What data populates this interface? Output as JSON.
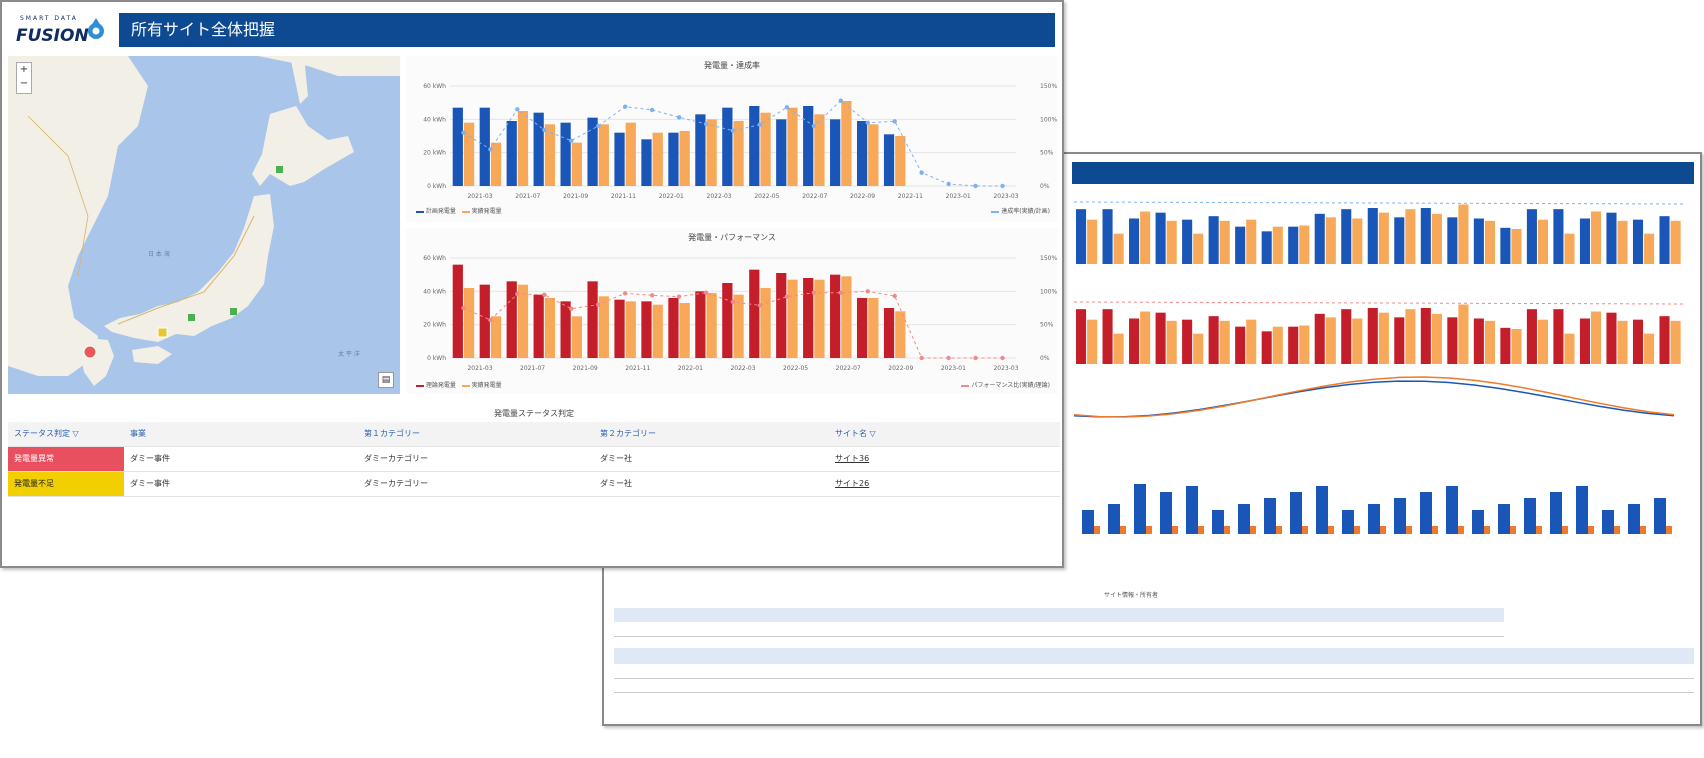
{
  "app": {
    "logo_text": "FUSION",
    "logo_small": "SMART DATA",
    "page_title": "所有サイト全体把握"
  },
  "map": {
    "zoom_in": "+",
    "zoom_out": "−",
    "layer_button": "▤",
    "colors": {
      "sea": "#a9c5ea",
      "land": "#f2efe6",
      "marker_red": "#e85a5a",
      "marker_yellow": "#e8c72c",
      "marker_green": "#4caf50"
    }
  },
  "charts": {
    "top": {
      "title": "発電量・達成率",
      "y_left_ticks": [
        "60 kWh",
        "40 kWh",
        "20 kWh",
        "0 kWh"
      ],
      "y_right_ticks": [
        "150%",
        "100%",
        "50%",
        "0%"
      ],
      "x_ticks": [
        "2021-03",
        "2021-07",
        "2021-09",
        "2021-11",
        "2022-01",
        "2022-03",
        "2022-05",
        "2022-07",
        "2022-09",
        "2022-11",
        "2023-01",
        "2023-03"
      ],
      "legend_a": "計画発電量",
      "legend_b": "実績発電量",
      "legend_c": "達成率(実績/計画)"
    },
    "bottom": {
      "title": "発電量・パフォーマンス",
      "y_left_ticks": [
        "60 kWh",
        "40 kWh",
        "20 kWh",
        "0 kWh"
      ],
      "y_right_ticks": [
        "150%",
        "100%",
        "50%",
        "0%"
      ],
      "x_ticks": [
        "2021-03",
        "2021-07",
        "2021-09",
        "2021-11",
        "2022-01",
        "2022-03",
        "2022-05",
        "2022-07",
        "2022-09",
        "2023-01",
        "2023-03"
      ],
      "legend_a": "理論発電量",
      "legend_b": "実績発電量",
      "legend_c": "パフォーマンス比(実績/理論)"
    }
  },
  "chart_data": [
    {
      "type": "bar",
      "title": "発電量・達成率",
      "series": [
        {
          "name": "計画発電量",
          "values": [
            47,
            47,
            39,
            44,
            38,
            41,
            32,
            28,
            32,
            43,
            47,
            48,
            40,
            48,
            40,
            39,
            31,
            0,
            0,
            0,
            0
          ]
        },
        {
          "name": "実績発電量",
          "values": [
            38,
            26,
            45,
            37,
            26,
            37,
            38,
            32,
            33,
            40,
            39,
            44,
            47,
            43,
            51,
            37,
            30,
            0,
            0,
            0,
            0
          ]
        },
        {
          "name": "達成率(実績/計画)",
          "values": [
            80,
            55,
            115,
            84,
            68,
            90,
            119,
            114,
            103,
            93,
            83,
            92,
            118,
            90,
            128,
            95,
            97,
            20,
            3,
            0,
            0
          ]
        }
      ],
      "ylim": [
        0,
        60
      ],
      "y2lim": [
        0,
        150
      ]
    },
    {
      "type": "bar",
      "title": "発電量・パフォーマンス",
      "series": [
        {
          "name": "理論発電量",
          "values": [
            56,
            44,
            46,
            38,
            34,
            46,
            35,
            34,
            36,
            40,
            45,
            53,
            51,
            48,
            50,
            36,
            30,
            0,
            0,
            0,
            0
          ]
        },
        {
          "name": "実績発電量",
          "values": [
            42,
            25,
            44,
            36,
            25,
            37,
            34,
            32,
            33,
            39,
            38,
            42,
            47,
            47,
            49,
            36,
            28,
            0,
            0,
            0,
            0
          ]
        },
        {
          "name": "パフォーマンス比(実績/理論)",
          "values": [
            75,
            57,
            96,
            95,
            74,
            80,
            97,
            94,
            92,
            98,
            84,
            79,
            92,
            98,
            98,
            100,
            93,
            0,
            0,
            0,
            0
          ]
        }
      ],
      "ylim": [
        0,
        60
      ],
      "y2lim": [
        0,
        150
      ]
    }
  ],
  "status_table": {
    "title": "発電量ステータス判定",
    "headers": [
      "ステータス判定 ▽",
      "事業",
      "第１カテゴリー",
      "第２カテゴリー",
      "サイト名 ▽"
    ],
    "rows": [
      {
        "status": "発電量異常",
        "business": "ダミー事件",
        "cat1": "ダミーカテゴリー",
        "cat2": "ダミー社",
        "site": "サイト36"
      },
      {
        "status": "発電量不足",
        "business": "ダミー事件",
        "cat1": "ダミーカテゴリー",
        "cat2": "ダミー社",
        "site": "サイト26"
      }
    ]
  },
  "back_window": {
    "section_title": "サイト情報・所有者"
  }
}
